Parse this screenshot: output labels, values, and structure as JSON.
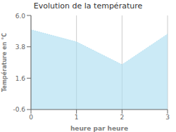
{
  "chart_data": {
    "type": "area",
    "title": "Evolution de la température",
    "x_label": "heure par heure",
    "y_label": "Température en °C",
    "x": [
      0,
      1,
      2,
      3
    ],
    "values": [
      5.0,
      4.15,
      2.55,
      4.7
    ],
    "color": "#A8DCF0",
    "line_style": "dotted",
    "grid": "x",
    "xlim": [
      0,
      3
    ],
    "ylim": [
      -0.6,
      6.0
    ],
    "xticks": [
      0,
      1,
      2,
      3
    ],
    "yticks": [
      -0.6,
      1.6,
      3.8,
      {
        "value": 6.0,
        "label": "6.0"
      }
    ]
  }
}
